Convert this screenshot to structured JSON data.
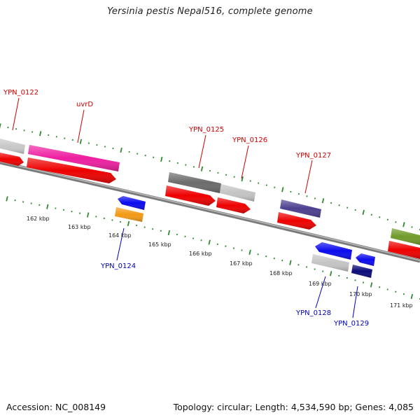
{
  "title": "Yersinia pestis Nepal516, complete genome",
  "footer": {
    "accession": "Accession: NC_008149",
    "summary": "Topology: circular; Length: 4,534,590 bp; Genes: 4,085"
  },
  "colors": {
    "forward_label": "#cc0000",
    "reverse_label": "#0000bb",
    "ruler_tick": "#2e8b2e",
    "backbone": "#8a8a8a",
    "cds_red": "#ee0000"
  },
  "tick_labels": [
    "162 kbp",
    "163 kbp",
    "164 kbp",
    "165 kbp",
    "166 kbp",
    "167 kbp",
    "168 kbp",
    "169 kbp",
    "170 kbp",
    "171 kbp"
  ],
  "gene_labels": {
    "YPN_0122": "YPN_0122",
    "uvrD": "uvrD",
    "YPN_0125": "YPN_0125",
    "YPN_0126": "YPN_0126",
    "YPN_0127": "YPN_0127",
    "YPN_0124": "YPN_0124",
    "YPN_0128": "YPN_0128",
    "YPN_0129": "YPN_0129"
  }
}
